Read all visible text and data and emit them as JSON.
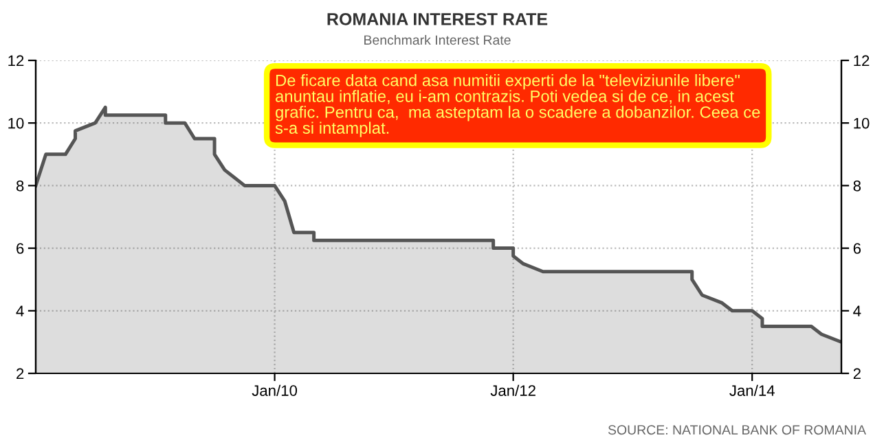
{
  "chart_data": {
    "type": "area",
    "title": "ROMANIA INTEREST RATE",
    "subtitle": "Benchmark Interest Rate",
    "x": [
      "2008-01",
      "2008-02",
      "2008-04",
      "2008-05",
      "2008-05",
      "2008-07",
      "2008-08",
      "2008-08",
      "2009-02",
      "2009-02",
      "2009-04",
      "2009-05",
      "2009-07",
      "2009-07",
      "2009-08",
      "2009-10",
      "2010-01",
      "2010-02",
      "2010-03",
      "2010-05",
      "2010-05",
      "2011-11",
      "2011-11",
      "2012-01",
      "2012-01",
      "2012-02",
      "2012-04",
      "2013-07",
      "2013-07",
      "2013-08",
      "2013-10",
      "2013-11",
      "2014-01",
      "2014-02",
      "2014-02",
      "2014-07",
      "2014-08",
      "2014-10"
    ],
    "series": [
      {
        "color": "#555555",
        "values": [
          8.0,
          9.0,
          9.0,
          9.5,
          9.75,
          10.0,
          10.5,
          10.25,
          10.25,
          10.0,
          10.0,
          9.5,
          9.5,
          9.0,
          8.5,
          8.0,
          8.0,
          7.5,
          6.5,
          6.5,
          6.25,
          6.25,
          6.0,
          6.0,
          5.75,
          5.5,
          5.25,
          5.25,
          5.0,
          4.5,
          4.25,
          4.0,
          4.0,
          3.75,
          3.5,
          3.5,
          3.25,
          3.0
        ]
      }
    ],
    "xlim": [
      "2008-01",
      "2014-10"
    ],
    "xticks": [
      {
        "value": "2010-01",
        "label": "Jan/10"
      },
      {
        "value": "2012-01",
        "label": "Jan/12"
      },
      {
        "value": "2014-01",
        "label": "Jan/14"
      }
    ],
    "ylim": [
      2,
      12
    ],
    "yticks": [
      2,
      4,
      6,
      8,
      10,
      12
    ],
    "y2lim": [
      2,
      12
    ],
    "y2ticks": [
      2,
      4,
      6,
      8,
      10,
      12
    ],
    "grid": true,
    "legend": false,
    "annotations": [
      "De ficare data cand asa numitii experti de la \"televiziunile libere\"\nanuntau inflatie, eu i-am contrazis. Poti vedea si de ce, in acest\ngrafic. Pentru ca,  ma asteptam la o scadere a dobanzilor. Ceea ce\ns-a si intamplat.",
      "SOURCE: NATIONAL BANK OF ROMANIA"
    ]
  }
}
